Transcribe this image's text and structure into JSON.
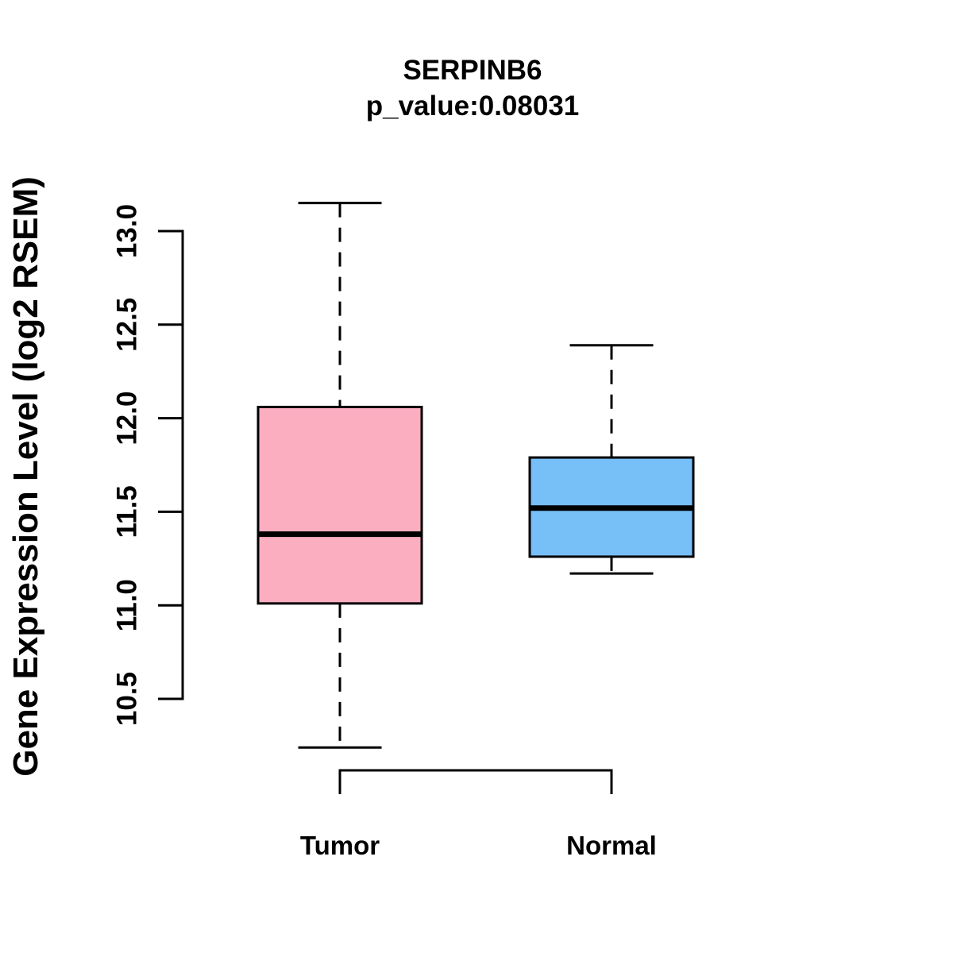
{
  "chart_data": {
    "type": "boxplot",
    "title": "SERPINB6",
    "subtitle": "p_value:0.08031",
    "ylabel": "Gene Expression Level (log2 RSEM)",
    "xlabel": "",
    "categories": [
      "Tumor",
      "Normal"
    ],
    "ytick_values": [
      10.5,
      11.0,
      11.5,
      12.0,
      12.5,
      13.0
    ],
    "ytick_labels": [
      "10.5",
      "11.0",
      "11.5",
      "12.0",
      "12.5",
      "13.0"
    ],
    "ylim": [
      10.5,
      13.0
    ],
    "grid": false,
    "legend": "none",
    "series": [
      {
        "name": "Tumor",
        "fill_color": "#FCAEC1",
        "whisker_low": 10.24,
        "q1": 11.01,
        "median": 11.38,
        "q3": 12.06,
        "whisker_high": 13.15
      },
      {
        "name": "Normal",
        "fill_color": "#77BFF7",
        "whisker_low": 11.17,
        "q1": 11.26,
        "median": 11.52,
        "q3": 11.79,
        "whisker_high": 12.39
      }
    ],
    "stroke_color": "#000000",
    "background_color": "#FFFFFF"
  }
}
